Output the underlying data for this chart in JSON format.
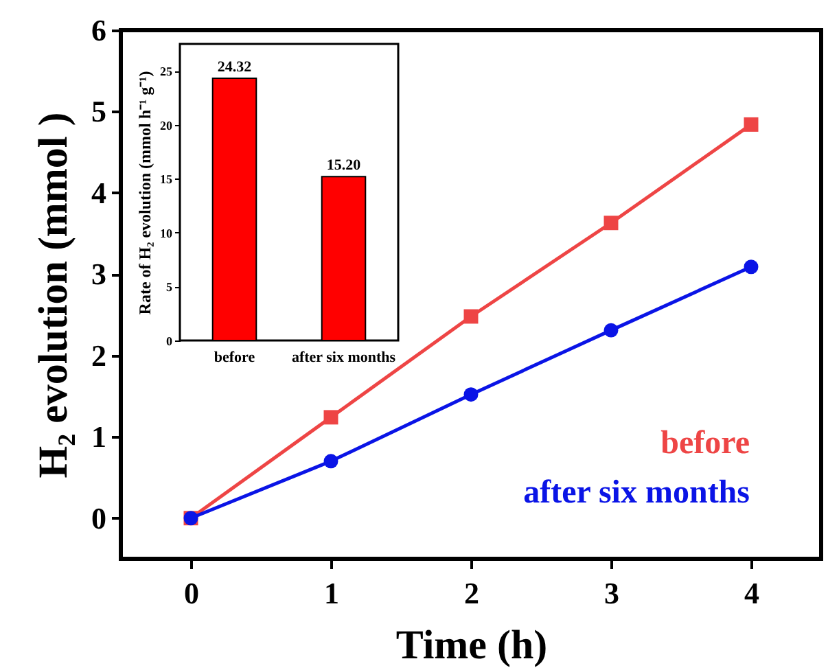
{
  "chart_data": [
    {
      "type": "line",
      "xlabel": "Time (h)",
      "ylabel": "H₂ evolution (mmol )",
      "x": [
        0,
        1,
        2,
        3,
        4
      ],
      "xlim": [
        -0.5,
        4.5
      ],
      "xticks": [
        0,
        1,
        2,
        3,
        4
      ],
      "ylim": [
        -0.5,
        6
      ],
      "yticks": [
        0,
        1,
        2,
        3,
        4,
        5,
        6
      ],
      "grid": false,
      "legend": "bottom right",
      "series": [
        {
          "name": "before",
          "color": "#ee4545",
          "marker": "square",
          "values": [
            0,
            1.24,
            2.48,
            3.63,
            4.84
          ]
        },
        {
          "name": "after six months",
          "color": "#0a14e6",
          "marker": "circle",
          "values": [
            0,
            0.7,
            1.52,
            2.31,
            3.09
          ]
        }
      ]
    },
    {
      "type": "bar",
      "ylabel": "Rate of H₂ evolution (mmol h⁻¹ g⁻¹)",
      "categories": [
        "before",
        "after six months"
      ],
      "values": [
        24.32,
        15.2
      ],
      "value_labels": [
        "24.32",
        "15.20"
      ],
      "color": "#ff0000",
      "ylim": [
        0,
        27.5
      ],
      "yticks": [
        0,
        5,
        10,
        15,
        20,
        25
      ]
    }
  ]
}
